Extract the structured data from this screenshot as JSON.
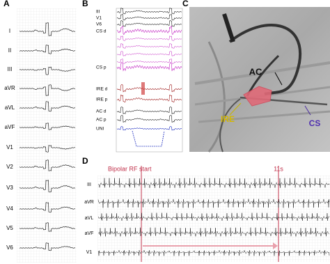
{
  "panels": {
    "a": {
      "label": "A",
      "leads": [
        "I",
        "II",
        "III",
        "aVR",
        "aVL",
        "aVF",
        "V1",
        "V2",
        "V3",
        "V4",
        "V5",
        "V6"
      ]
    },
    "b": {
      "label": "B",
      "channels": [
        "III",
        "V1",
        "V6",
        "CS d",
        "CS p",
        "IRE d",
        "IRE p",
        "AC d",
        "AC p",
        "UNI"
      ]
    },
    "c": {
      "label": "C",
      "annotations": [
        "AC",
        "IRE",
        "CS"
      ]
    },
    "d": {
      "label": "D",
      "rf_start": "Bipolar RF start",
      "end_time": "11s",
      "leads": [
        "III",
        "aVR",
        "aVL",
        "aVF",
        "V1"
      ]
    }
  }
}
